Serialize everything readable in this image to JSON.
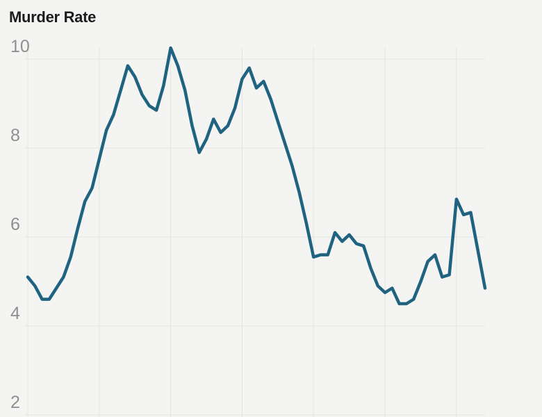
{
  "header": {
    "title": "Murder Rate"
  },
  "colors": {
    "background": "#f4f4f2",
    "grid": "#e3e3e1",
    "axis_label": "#8f8f8f",
    "title_text": "#1c1c1c",
    "line": "#1f6381"
  },
  "y_axis": {
    "tick_labels": [
      "10",
      "8",
      "6",
      "4",
      "2"
    ],
    "tick_values": [
      10,
      8,
      6,
      4,
      2
    ]
  },
  "x_axis": {
    "labels_visible": false,
    "gridline_years": [
      1960,
      1970,
      1980,
      1990,
      2000,
      2010,
      2020
    ]
  },
  "chart_data": {
    "type": "line",
    "title": "Murder Rate",
    "xlabel": "",
    "ylabel": "",
    "x_start_year": 1960,
    "x_end_year": 2024,
    "x": [
      1960,
      1961,
      1962,
      1963,
      1964,
      1965,
      1966,
      1967,
      1968,
      1969,
      1970,
      1971,
      1972,
      1973,
      1974,
      1975,
      1976,
      1977,
      1978,
      1979,
      1980,
      1981,
      1982,
      1983,
      1984,
      1985,
      1986,
      1987,
      1988,
      1989,
      1990,
      1991,
      1992,
      1993,
      1994,
      1995,
      1996,
      1997,
      1998,
      1999,
      2000,
      2001,
      2002,
      2003,
      2004,
      2005,
      2006,
      2007,
      2008,
      2009,
      2010,
      2011,
      2012,
      2013,
      2014,
      2015,
      2016,
      2017,
      2018,
      2019,
      2020,
      2021,
      2022,
      2023,
      2024
    ],
    "values": [
      5.1,
      4.9,
      4.6,
      4.6,
      4.85,
      5.1,
      5.55,
      6.2,
      6.8,
      7.1,
      7.75,
      8.4,
      8.75,
      9.3,
      9.85,
      9.6,
      9.2,
      8.95,
      8.85,
      9.4,
      10.25,
      9.85,
      9.3,
      8.5,
      7.9,
      8.2,
      8.65,
      8.35,
      8.5,
      8.9,
      9.55,
      9.8,
      9.35,
      9.5,
      9.1,
      8.6,
      8.1,
      7.6,
      7.0,
      6.3,
      5.55,
      5.6,
      5.6,
      6.1,
      5.9,
      6.05,
      5.85,
      5.8,
      5.3,
      4.9,
      4.75,
      4.85,
      4.5,
      4.5,
      4.6,
      5.0,
      5.45,
      5.6,
      5.1,
      5.15,
      6.85,
      6.5,
      6.55,
      5.7,
      4.85
    ],
    "ylim": [
      2,
      10.6
    ],
    "yticks": [
      2,
      4,
      6,
      8,
      10
    ],
    "grid": true,
    "legend_position": "none",
    "line_color": "#1f6381"
  }
}
